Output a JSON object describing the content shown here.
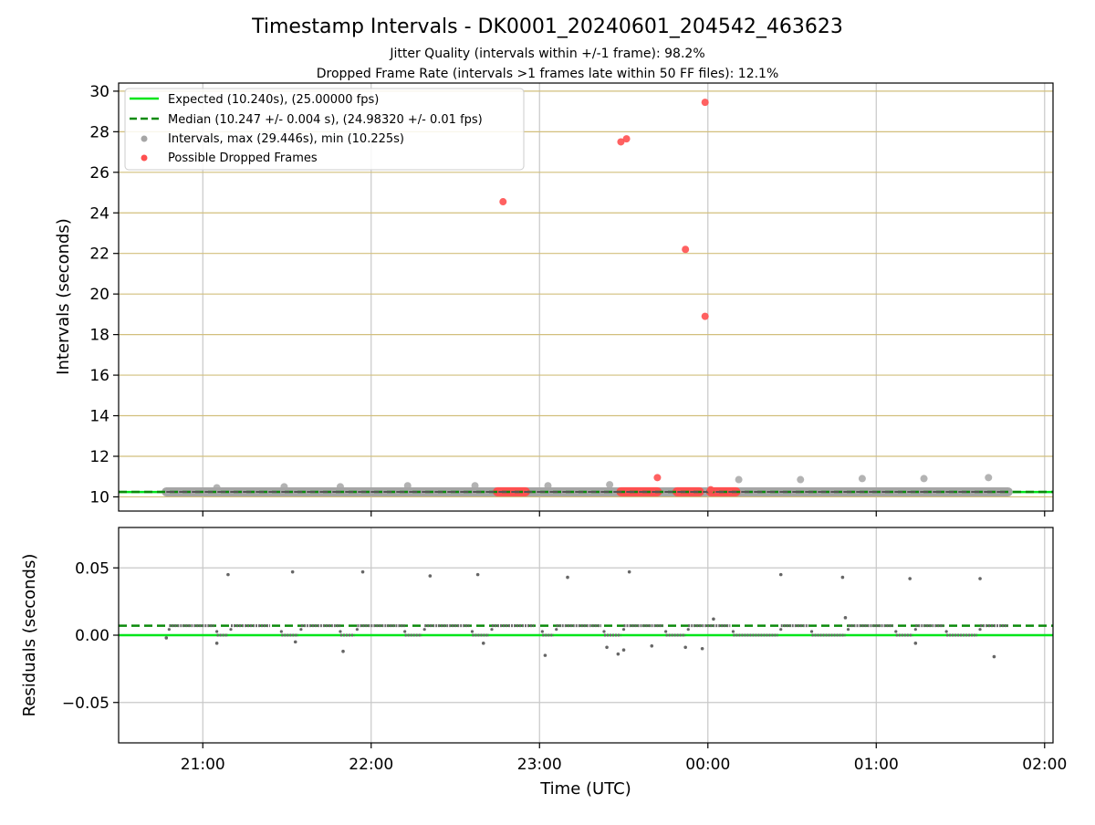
{
  "figure": {
    "title": "Timestamp Intervals - DK0001_20240601_204542_463623",
    "subtitle_1": "Jitter Quality (intervals within +/-1 frame): 98.2%",
    "subtitle_2": "Dropped Frame Rate (intervals >1 frames late within 50 FF files): 12.1%"
  },
  "colors": {
    "expected": "#00e51a",
    "median": "#0b8a0b",
    "intervals": "#a6a6a6",
    "dropped": "#ff5050",
    "hgrid": "#d2bf7c",
    "vgrid": "#c8c8c8",
    "residuals": "#666666"
  },
  "chart_data": [
    {
      "type": "scatter",
      "ylabel": "Intervals (seconds)",
      "ylim": [
        9.3,
        30.4
      ],
      "xlim": [
        "20:30",
        "02:03"
      ],
      "yticks": [
        "10",
        "12",
        "14",
        "16",
        "18",
        "20",
        "22",
        "24",
        "26",
        "28",
        "30"
      ],
      "legend_position": "top-left",
      "legend": [
        "Expected (10.240s), (25.00000 fps)",
        "Median (10.247 +/- 0.004 s), (24.98320 +/- 0.01 fps)",
        "Intervals, max (29.446s), min (10.225s)",
        "Possible Dropped Frames"
      ],
      "expected": 10.24,
      "median": 10.247,
      "intervals_band": {
        "start": "20:47",
        "end": "01:47",
        "value": 10.247
      },
      "interval_outliers": [
        {
          "x": "21:05",
          "y": 10.45
        },
        {
          "x": "21:29",
          "y": 10.5
        },
        {
          "x": "21:49",
          "y": 10.5
        },
        {
          "x": "22:13",
          "y": 10.55
        },
        {
          "x": "22:37",
          "y": 10.55
        },
        {
          "x": "23:03",
          "y": 10.55
        },
        {
          "x": "23:25",
          "y": 10.6
        },
        {
          "x": "00:11",
          "y": 10.85
        },
        {
          "x": "00:33",
          "y": 10.85
        },
        {
          "x": "00:55",
          "y": 10.9
        },
        {
          "x": "01:17",
          "y": 10.9
        },
        {
          "x": "01:40",
          "y": 10.95
        }
      ],
      "dropped_frames": [
        {
          "x": "22:47",
          "y": 24.55
        },
        {
          "x": "23:29",
          "y": 27.5
        },
        {
          "x": "23:31",
          "y": 27.65
        },
        {
          "x": "23:42",
          "y": 10.95
        },
        {
          "x": "23:52",
          "y": 22.2
        },
        {
          "x": "23:59",
          "y": 29.45
        },
        {
          "x": "23:59",
          "y": 18.9
        },
        {
          "x": "00:01",
          "y": 10.35
        }
      ],
      "dropped_runs": [
        {
          "start": "22:45",
          "end": "22:55",
          "y": 10.25
        },
        {
          "start": "23:29",
          "end": "23:42",
          "y": 10.25
        },
        {
          "start": "23:49",
          "end": "23:57",
          "y": 10.25
        },
        {
          "start": "00:01",
          "end": "00:10",
          "y": 10.25
        }
      ]
    },
    {
      "type": "scatter",
      "ylabel": "Residuals (seconds)",
      "xlabel": "Time (UTC)",
      "ylim": [
        -0.08,
        0.08
      ],
      "xlim": [
        "20:30",
        "02:03"
      ],
      "yticks": [
        "0.05",
        "0.00",
        "−0.05"
      ],
      "xticks": [
        "21:00",
        "22:00",
        "23:00",
        "00:00",
        "01:00",
        "02:00"
      ],
      "expected": 0.0,
      "median": 0.007,
      "segments": [
        {
          "start": "20:48",
          "end": "21:04",
          "y": 0.007
        },
        {
          "start": "21:05",
          "end": "21:09",
          "y": 0.0
        },
        {
          "start": "21:10",
          "end": "21:24",
          "y": 0.007
        },
        {
          "start": "21:28",
          "end": "21:34",
          "y": 0.0
        },
        {
          "start": "21:35",
          "end": "21:49",
          "y": 0.007
        },
        {
          "start": "21:49",
          "end": "21:54",
          "y": 0.0
        },
        {
          "start": "21:55",
          "end": "22:12",
          "y": 0.007
        },
        {
          "start": "22:12",
          "end": "22:18",
          "y": 0.0
        },
        {
          "start": "22:19",
          "end": "22:35",
          "y": 0.007
        },
        {
          "start": "22:36",
          "end": "22:42",
          "y": 0.0
        },
        {
          "start": "22:43",
          "end": "22:58",
          "y": 0.007
        },
        {
          "start": "23:01",
          "end": "23:05",
          "y": 0.0
        },
        {
          "start": "23:06",
          "end": "23:22",
          "y": 0.007
        },
        {
          "start": "23:23",
          "end": "23:29",
          "y": 0.0
        },
        {
          "start": "23:30",
          "end": "23:44",
          "y": 0.007
        },
        {
          "start": "23:45",
          "end": "23:52",
          "y": 0.0
        },
        {
          "start": "23:53",
          "end": "00:08",
          "y": 0.007
        },
        {
          "start": "00:09",
          "end": "00:25",
          "y": 0.0
        },
        {
          "start": "00:26",
          "end": "00:36",
          "y": 0.007
        },
        {
          "start": "00:37",
          "end": "00:49",
          "y": 0.0
        },
        {
          "start": "00:50",
          "end": "01:06",
          "y": 0.007
        },
        {
          "start": "01:07",
          "end": "01:13",
          "y": 0.0
        },
        {
          "start": "01:14",
          "end": "01:24",
          "y": 0.007
        },
        {
          "start": "01:25",
          "end": "01:36",
          "y": 0.0
        },
        {
          "start": "01:37",
          "end": "01:47",
          "y": 0.007
        }
      ],
      "outliers": [
        {
          "x": "20:47",
          "y": -0.002
        },
        {
          "x": "21:05",
          "y": -0.006
        },
        {
          "x": "21:09",
          "y": 0.045
        },
        {
          "x": "21:32",
          "y": 0.047
        },
        {
          "x": "21:33",
          "y": -0.005
        },
        {
          "x": "21:50",
          "y": -0.012
        },
        {
          "x": "21:57",
          "y": 0.047
        },
        {
          "x": "22:21",
          "y": 0.044
        },
        {
          "x": "22:38",
          "y": 0.045
        },
        {
          "x": "22:40",
          "y": -0.006
        },
        {
          "x": "23:02",
          "y": -0.015
        },
        {
          "x": "23:10",
          "y": 0.043
        },
        {
          "x": "23:24",
          "y": -0.009
        },
        {
          "x": "23:28",
          "y": -0.014
        },
        {
          "x": "23:30",
          "y": -0.011
        },
        {
          "x": "23:32",
          "y": 0.047
        },
        {
          "x": "23:40",
          "y": -0.008
        },
        {
          "x": "23:52",
          "y": -0.009
        },
        {
          "x": "23:58",
          "y": -0.01
        },
        {
          "x": "00:02",
          "y": 0.012
        },
        {
          "x": "00:26",
          "y": 0.045
        },
        {
          "x": "00:48",
          "y": 0.043
        },
        {
          "x": "00:49",
          "y": 0.013
        },
        {
          "x": "01:12",
          "y": 0.042
        },
        {
          "x": "01:14",
          "y": -0.006
        },
        {
          "x": "01:37",
          "y": 0.042
        },
        {
          "x": "01:42",
          "y": -0.016
        }
      ]
    }
  ]
}
